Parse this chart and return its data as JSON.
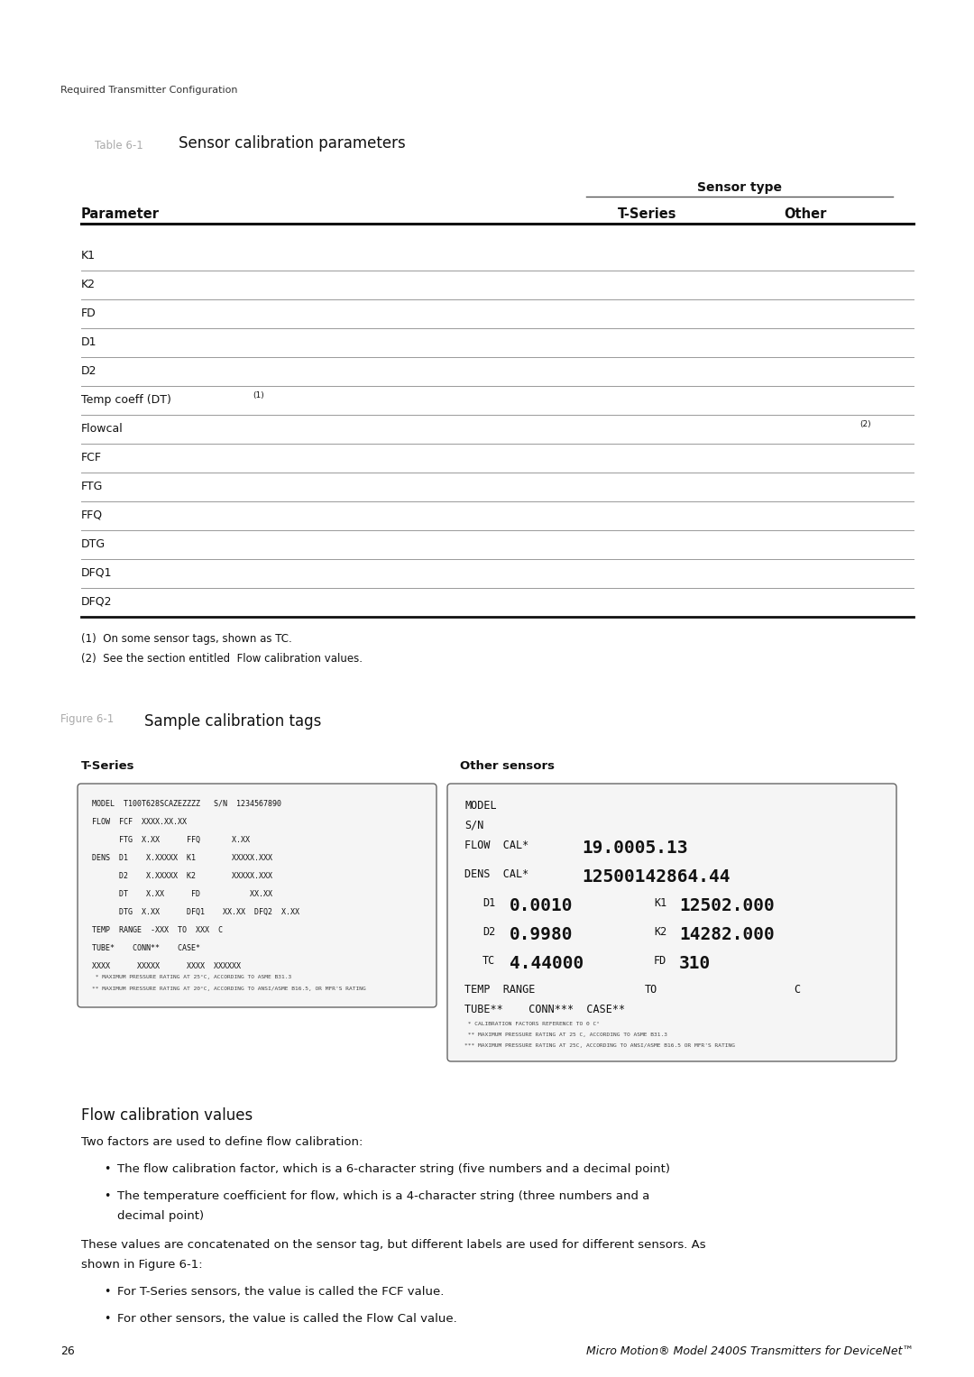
{
  "page_bg": "#ffffff",
  "header_text": "Required Transmitter Configuration",
  "table_title_label": "Table 6-1",
  "table_title_text": "Sensor calibration parameters",
  "sensor_type_header": "Sensor type",
  "col_headers": [
    "Parameter",
    "T-Series",
    "Other"
  ],
  "table_rows": [
    "K1",
    "K2",
    "FD",
    "D1",
    "D2",
    "Temp coeff (DT)(1)",
    "Flowcal",
    "FCF",
    "FTG",
    "FFQ",
    "DTG",
    "DFQ1",
    "DFQ2"
  ],
  "flowcal_note": "(2)",
  "footnotes": [
    "(1)  On some sensor tags, shown as TC.",
    "(2)  See the section entitled  Flow calibration values."
  ],
  "figure_label": "Figure 6-1",
  "figure_title": "Sample calibration tags",
  "tseries_label": "T-Series",
  "other_label": "Other sensors",
  "tseries_box_lines": [
    "MODEL  T100T628SCAZEZZZZ   S/N  1234567890",
    "FLOW  FCF  XXXX.XX.XX",
    "      FTG  X.XX      FFQ       X.XX",
    "DENS  D1    X.XXXXX  K1        XXXXX.XXX",
    "      D2    X.XXXXX  K2        XXXXX.XXX",
    "      DT    X.XX      FD           XX.XX",
    "      DTG  X.XX      DFQ1    XX.XX  DFQ2  X.XX",
    "TEMP  RANGE  -XXX  TO  XXX  C",
    "TUBE*    CONN**    CASE*",
    "XXXX      XXXXX      XXXX  XXXXXX"
  ],
  "tseries_footnotes": [
    " * MAXIMUM PRESSURE RATING AT 25°C, ACCORDING TO ASME B31.3",
    "** MAXIMUM PRESSURE RATING AT 20°C, ACCORDING TO ANSI/ASME B16.5, OR MFR'S RATING"
  ],
  "other_footnotes": [
    " * CALIBRATION FACTORS REFERENCE TO 0 C°",
    " ** MAXIMUM PRESSURE RATING AT 25 C, ACCORDING TO ASME B31.3",
    "*** MAXIMUM PRESSURE RATING AT 25C, ACCORDING TO ANSI/ASME B16.5 OR MFR'S RATING"
  ],
  "flow_cal_heading": "Flow calibration values",
  "flow_cal_para1": "Two factors are used to define flow calibration:",
  "flow_cal_bullet1": "The flow calibration factor, which is a 6-character string (five numbers and a decimal point)",
  "flow_cal_bullet2a": "The temperature coefficient for flow, which is a 4-character string (three numbers and a",
  "flow_cal_bullet2b": "decimal point)",
  "flow_cal_para2a": "These values are concatenated on the sensor tag, but different labels are used for different sensors. As",
  "flow_cal_para2b": "shown in Figure 6-1:",
  "flow_cal_bullet3": "For T-Series sensors, the value is called the FCF value.",
  "flow_cal_bullet4": "For other sensors, the value is called the Flow Cal value.",
  "footer_page": "26",
  "footer_text": "Micro Motion® Model 2400S Transmitters for DeviceNet™"
}
